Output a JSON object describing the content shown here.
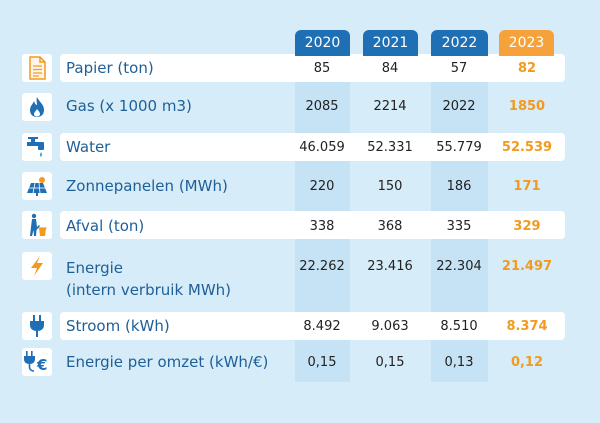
{
  "colors": {
    "background": "#d6ecf8",
    "header_blue": "#1f6fb4",
    "header_orange": "#f6a23c",
    "label_blue": "#1f5f98",
    "highlight_orange": "#f39a1e"
  },
  "years": [
    "2020",
    "2021",
    "2022",
    "2023"
  ],
  "rows": [
    {
      "label": "Papier (ton)",
      "icon": "document-icon",
      "values": [
        "85",
        "84",
        "57",
        "82"
      ]
    },
    {
      "label": "Gas (x 1000 m3)",
      "icon": "flame-icon",
      "values": [
        "2085",
        "2214",
        "2022",
        "1850"
      ]
    },
    {
      "label": "Water",
      "icon": "water-tap-icon",
      "values": [
        "46.059",
        "52.331",
        "55.779",
        "52.539"
      ]
    },
    {
      "label": "Zonnepanelen (MWh)",
      "icon": "solar-panel-icon",
      "values": [
        "220",
        "150",
        "186",
        "171"
      ]
    },
    {
      "label": "Afval (ton)",
      "icon": "waste-bin-icon",
      "values": [
        "338",
        "368",
        "335",
        "329"
      ]
    },
    {
      "label": "Energie",
      "label2": "(intern verbruik MWh)",
      "icon": "lightning-icon",
      "values": [
        "22.262",
        "23.416",
        "22.304",
        "21.497"
      ]
    },
    {
      "label": "Stroom (kWh)",
      "icon": "plug-icon",
      "values": [
        "8.492",
        "9.063",
        "8.510",
        "8.374"
      ]
    },
    {
      "label": "Energie per omzet (kWh/€)",
      "icon": "plug-euro-icon",
      "values": [
        "0,15",
        "0,15",
        "0,13",
        "0,12"
      ]
    }
  ]
}
